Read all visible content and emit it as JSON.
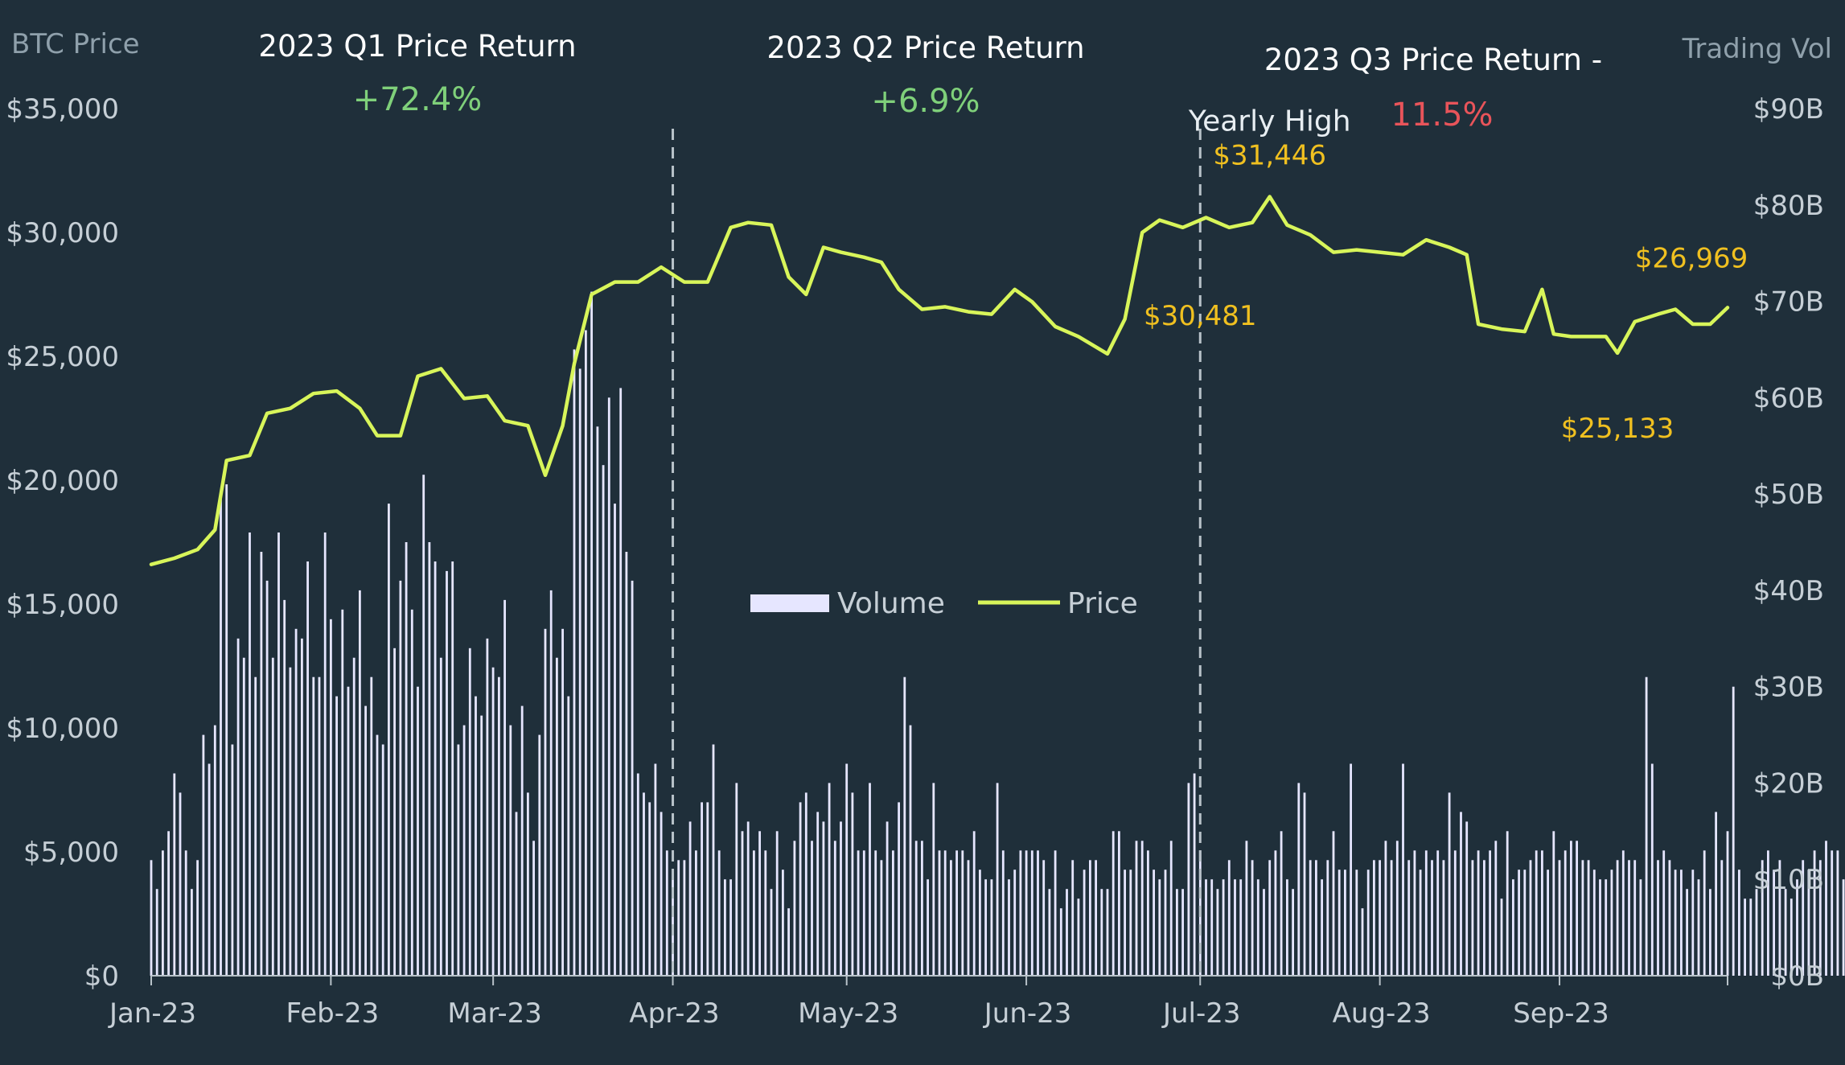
{
  "chart_data": {
    "type": "line",
    "left_axis_title": "BTC Price",
    "right_axis_title": "Trading Vol",
    "y_left_ticks": [
      "$0",
      "$5,000",
      "$10,000",
      "$15,000",
      "$20,000",
      "$25,000",
      "$30,000",
      "$35,000"
    ],
    "y_left_lim": [
      0,
      35000
    ],
    "y_right_ticks": [
      "$0B",
      "$10B",
      "$20B",
      "$30B",
      "$40B",
      "$50B",
      "$60B",
      "$70B",
      "$80B",
      "$90B"
    ],
    "y_right_lim": [
      0,
      90
    ],
    "x_ticks": [
      {
        "label": "Jan-23",
        "date": "2023-01-01"
      },
      {
        "label": "Feb-23",
        "date": "2023-02-01"
      },
      {
        "label": "Mar-23",
        "date": "2023-03-01"
      },
      {
        "label": "Apr-23",
        "date": "2023-04-01"
      },
      {
        "label": "May-23",
        "date": "2023-05-01"
      },
      {
        "label": "Jun-23",
        "date": "2023-06-01"
      },
      {
        "label": "Jul-23",
        "date": "2023-07-01"
      },
      {
        "label": "Aug-23",
        "date": "2023-08-01"
      },
      {
        "label": "Sep-23",
        "date": "2023-09-01"
      }
    ],
    "x_range": [
      "2023-01-01",
      "2023-09-30"
    ],
    "series": [
      {
        "name": "Price",
        "color": "#d8f55a",
        "axis": "left",
        "points": [
          [
            "2023-01-01",
            16600
          ],
          [
            "2023-01-05",
            16850
          ],
          [
            "2023-01-09",
            17200
          ],
          [
            "2023-01-12",
            18000
          ],
          [
            "2023-01-14",
            20800
          ],
          [
            "2023-01-18",
            21000
          ],
          [
            "2023-01-21",
            22700
          ],
          [
            "2023-01-25",
            22900
          ],
          [
            "2023-01-29",
            23500
          ],
          [
            "2023-02-02",
            23600
          ],
          [
            "2023-02-06",
            22900
          ],
          [
            "2023-02-09",
            21800
          ],
          [
            "2023-02-13",
            21800
          ],
          [
            "2023-02-16",
            24200
          ],
          [
            "2023-02-20",
            24500
          ],
          [
            "2023-02-24",
            23300
          ],
          [
            "2023-02-28",
            23400
          ],
          [
            "2023-03-03",
            22400
          ],
          [
            "2023-03-07",
            22200
          ],
          [
            "2023-03-10",
            20200
          ],
          [
            "2023-03-13",
            22200
          ],
          [
            "2023-03-15",
            24700
          ],
          [
            "2023-03-18",
            27500
          ],
          [
            "2023-03-22",
            28000
          ],
          [
            "2023-03-26",
            28000
          ],
          [
            "2023-03-30",
            28600
          ],
          [
            "2023-04-03",
            28000
          ],
          [
            "2023-04-07",
            28000
          ],
          [
            "2023-04-11",
            30200
          ],
          [
            "2023-04-14",
            30400
          ],
          [
            "2023-04-18",
            30300
          ],
          [
            "2023-04-21",
            28200
          ],
          [
            "2023-04-24",
            27500
          ],
          [
            "2023-04-27",
            29400
          ],
          [
            "2023-04-30",
            29200
          ],
          [
            "2023-05-04",
            29000
          ],
          [
            "2023-05-07",
            28800
          ],
          [
            "2023-05-10",
            27700
          ],
          [
            "2023-05-14",
            26900
          ],
          [
            "2023-05-18",
            27000
          ],
          [
            "2023-05-22",
            26800
          ],
          [
            "2023-05-26",
            26700
          ],
          [
            "2023-05-30",
            27700
          ],
          [
            "2023-06-02",
            27200
          ],
          [
            "2023-06-06",
            26200
          ],
          [
            "2023-06-10",
            25800
          ],
          [
            "2023-06-15",
            25100
          ],
          [
            "2023-06-18",
            26500
          ],
          [
            "2023-06-21",
            30000
          ],
          [
            "2023-06-24",
            30500
          ],
          [
            "2023-06-28",
            30200
          ],
          [
            "2023-07-02",
            30600
          ],
          [
            "2023-07-06",
            30200
          ],
          [
            "2023-07-10",
            30400
          ],
          [
            "2023-07-13",
            31446
          ],
          [
            "2023-07-16",
            30300
          ],
          [
            "2023-07-20",
            29900
          ],
          [
            "2023-07-24",
            29200
          ],
          [
            "2023-07-28",
            29300
          ],
          [
            "2023-08-01",
            29200
          ],
          [
            "2023-08-05",
            29100
          ],
          [
            "2023-08-09",
            29700
          ],
          [
            "2023-08-13",
            29400
          ],
          [
            "2023-08-16",
            29100
          ],
          [
            "2023-08-18",
            26300
          ],
          [
            "2023-08-22",
            26100
          ],
          [
            "2023-08-26",
            26000
          ],
          [
            "2023-08-29",
            27700
          ],
          [
            "2023-08-31",
            25900
          ],
          [
            "2023-09-03",
            25800
          ],
          [
            "2023-09-06",
            25800
          ],
          [
            "2023-09-09",
            25800
          ],
          [
            "2023-09-11",
            25133
          ],
          [
            "2023-09-14",
            26400
          ],
          [
            "2023-09-18",
            26700
          ],
          [
            "2023-09-21",
            26900
          ],
          [
            "2023-09-24",
            26300
          ],
          [
            "2023-09-27",
            26300
          ],
          [
            "2023-09-30",
            26969
          ]
        ]
      },
      {
        "name": "Volume",
        "color": "#e6e6ff",
        "axis": "right",
        "type": "bar",
        "start_date": "2023-01-01",
        "values": [
          12,
          9,
          13,
          15,
          21,
          19,
          13,
          9,
          12,
          25,
          22,
          26,
          50,
          51,
          24,
          35,
          33,
          46,
          31,
          44,
          41,
          33,
          46,
          39,
          32,
          36,
          35,
          43,
          31,
          31,
          46,
          37,
          29,
          38,
          30,
          33,
          40,
          28,
          31,
          25,
          24,
          49,
          34,
          41,
          45,
          38,
          30,
          52,
          45,
          43,
          33,
          42,
          43,
          24,
          26,
          34,
          29,
          27,
          35,
          32,
          31,
          39,
          26,
          17,
          28,
          19,
          14,
          25,
          36,
          40,
          33,
          36,
          29,
          65,
          63,
          67,
          71,
          57,
          53,
          60,
          49,
          61,
          44,
          41,
          21,
          19,
          18,
          22,
          17,
          13,
          11,
          12,
          12,
          16,
          13,
          18,
          18,
          24,
          13,
          10,
          10,
          20,
          15,
          16,
          13,
          15,
          13,
          9,
          15,
          11,
          7,
          14,
          18,
          19,
          14,
          17,
          16,
          20,
          14,
          16,
          22,
          19,
          13,
          13,
          20,
          13,
          12,
          16,
          13,
          18,
          31,
          26,
          14,
          14,
          10,
          20,
          13,
          13,
          12,
          13,
          13,
          12,
          15,
          11,
          10,
          10,
          20,
          13,
          10,
          11,
          13,
          13,
          13,
          13,
          12,
          9,
          13,
          7,
          9,
          12,
          8,
          11,
          12,
          12,
          9,
          9,
          15,
          15,
          11,
          11,
          14,
          14,
          13,
          11,
          10,
          11,
          14,
          9,
          9,
          20,
          21,
          13,
          10,
          10,
          9,
          10,
          12,
          10,
          10,
          14,
          12,
          10,
          9,
          12,
          13,
          15,
          10,
          9,
          20,
          19,
          12,
          12,
          10,
          12,
          15,
          11,
          11,
          22,
          11,
          7,
          11,
          12,
          12,
          14,
          12,
          14,
          22,
          12,
          13,
          11,
          13,
          12,
          13,
          12,
          19,
          13,
          17,
          16,
          12,
          13,
          12,
          13,
          14,
          8,
          15,
          10,
          11,
          11,
          12,
          13,
          13,
          11,
          15,
          12,
          13,
          14,
          14,
          12,
          12,
          11,
          10,
          10,
          11,
          12,
          13,
          12,
          12,
          10,
          31,
          22,
          12,
          13,
          12,
          11,
          11,
          9,
          11,
          10,
          13,
          9,
          17,
          12,
          15,
          30,
          11,
          8,
          8,
          9,
          12,
          13,
          11,
          12,
          9,
          8,
          10,
          12,
          11,
          13,
          12,
          14,
          13,
          13,
          10,
          11,
          13,
          14,
          11,
          12,
          13,
          9,
          11,
          12,
          14,
          12,
          13,
          16,
          14,
          12,
          13,
          11,
          11,
          10,
          12,
          13
        ]
      }
    ],
    "quarters": [
      {
        "title": "2023 Q1 Price Return",
        "value": "+72.4%",
        "sign": "positive"
      },
      {
        "title": "2023 Q2 Price Return",
        "value": "+6.9%",
        "sign": "positive"
      },
      {
        "title": "2023 Q3 Price Return -",
        "value": "11.5%",
        "sign": "negative"
      }
    ],
    "quarter_dividers": [
      "2023-04-01",
      "2023-07-01"
    ],
    "annotations": [
      {
        "date": "2023-07-13",
        "price": 31446,
        "label": "Yearly High",
        "value_label": "$31,446"
      },
      {
        "date": "2023-07-01",
        "price": 30481,
        "label": "",
        "value_label": "$30,481"
      },
      {
        "date": "2023-09-30",
        "price": 26969,
        "label": "",
        "value_label": "$26,969"
      },
      {
        "date": "2023-09-11",
        "price": 25133,
        "label": "",
        "value_label": "$25,133"
      }
    ],
    "legend": {
      "placement": "center",
      "items": [
        {
          "name": "Volume",
          "kind": "bar"
        },
        {
          "name": "Price",
          "kind": "line"
        }
      ]
    },
    "grid": false
  },
  "colors": {
    "background": "#1f2f3a",
    "price_line": "#d8f55a",
    "volume_bars": "#e6e6ff",
    "positive": "#7fd07a",
    "negative": "#e8545a",
    "annotation": "#f0c020",
    "axis_text": "#c6cfd6",
    "axis_title": "#8fa0ab"
  }
}
